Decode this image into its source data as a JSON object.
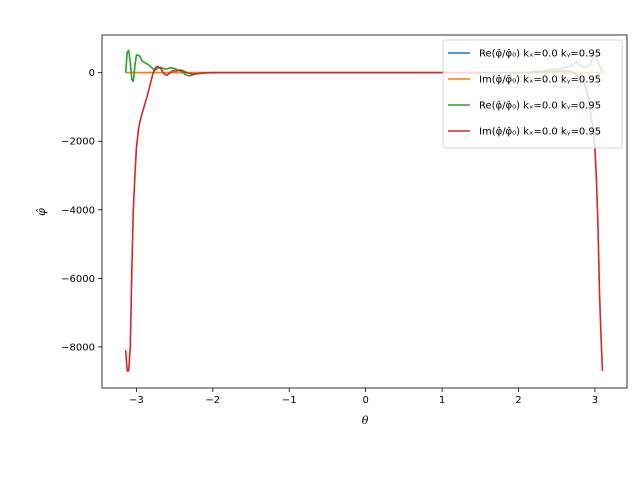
{
  "chart_data": {
    "type": "line",
    "xlabel": "θ",
    "ylabel": "φ̂",
    "xlim": [
      -3.45,
      3.42
    ],
    "ylim": [
      -9200,
      1100
    ],
    "xticks": [
      -3,
      -2,
      -1,
      0,
      1,
      2,
      3
    ],
    "yticks": [
      -8000,
      -6000,
      -4000,
      -2000,
      0
    ],
    "grid": false,
    "legend_position": "top-right",
    "series": [
      {
        "name": "Re(φ̂/φ̂₀) kₓ=0.0 kᵧ=0.95",
        "color": "#1f77b4",
        "x": [
          -3.14,
          3.1
        ],
        "y": [
          0,
          0
        ]
      },
      {
        "name": "Im(φ̂/φ̂₀) kₓ=0.0 kᵧ=0.95",
        "color": "#ff7f0e",
        "x": [
          -3.14,
          3.1
        ],
        "y": [
          0,
          0
        ]
      },
      {
        "name": "Re(φ̂/φ̂₀) kₓ=0.0 kᵧ=0.95",
        "color": "#2ca02c",
        "x": [
          -3.14,
          -3.12,
          -3.1,
          -3.08,
          -3.06,
          -3.04,
          -3.02,
          -3.0,
          -2.96,
          -2.92,
          -2.88,
          -2.84,
          -2.8,
          -2.76,
          -2.72,
          -2.68,
          -2.64,
          -2.6,
          -2.56,
          -2.52,
          -2.48,
          -2.44,
          -2.4,
          -2.36,
          -2.32,
          -2.28,
          -2.24,
          -2.2,
          -2.1,
          -2.0,
          -1.8,
          -1.5,
          -1.0,
          0.0,
          1.0,
          1.5,
          1.8,
          2.0,
          2.1,
          2.2,
          2.3,
          2.4,
          2.5,
          2.6,
          2.7,
          2.76,
          2.82,
          2.88,
          2.94,
          2.98,
          3.02,
          3.06,
          3.1
        ],
        "y": [
          0,
          600,
          650,
          300,
          -200,
          -250,
          200,
          520,
          500,
          330,
          280,
          230,
          150,
          60,
          130,
          160,
          110,
          110,
          140,
          130,
          100,
          60,
          20,
          -50,
          -90,
          -80,
          -40,
          -20,
          0,
          0,
          0,
          0,
          0,
          0,
          0,
          0,
          0,
          0,
          10,
          30,
          50,
          80,
          100,
          140,
          220,
          320,
          200,
          150,
          230,
          500,
          450,
          200,
          0
        ]
      },
      {
        "name": "Im(φ̂/φ̂₀) kₓ=0.0 kᵧ=0.95",
        "color": "#d62728",
        "x": [
          -3.14,
          -3.12,
          -3.1,
          -3.08,
          -3.06,
          -3.04,
          -3.02,
          -3.0,
          -2.97,
          -2.94,
          -2.9,
          -2.86,
          -2.82,
          -2.78,
          -2.75,
          -2.72,
          -2.68,
          -2.64,
          -2.6,
          -2.56,
          -2.52,
          -2.48,
          -2.44,
          -2.4,
          -2.36,
          -2.3,
          -2.24,
          -2.2,
          -2.1,
          -2.0,
          -1.5,
          -1.0,
          0.0,
          1.0,
          1.5,
          2.0,
          2.2,
          2.4,
          2.6,
          2.7,
          2.78,
          2.84,
          2.88,
          2.92,
          2.95,
          2.98,
          3.0,
          3.02,
          3.04,
          3.06,
          3.08,
          3.1
        ],
        "y": [
          -8100,
          -8700,
          -8700,
          -8000,
          -5800,
          -4000,
          -3000,
          -2200,
          -1600,
          -1300,
          -1000,
          -700,
          -350,
          0,
          150,
          180,
          120,
          -30,
          -80,
          0,
          60,
          50,
          80,
          70,
          20,
          -20,
          -40,
          -30,
          -10,
          0,
          0,
          0,
          0,
          0,
          0,
          0,
          10,
          30,
          50,
          30,
          -100,
          -200,
          -400,
          -800,
          -1300,
          -1700,
          -2200,
          -3100,
          -4500,
          -6400,
          -7700,
          -8700
        ]
      }
    ]
  }
}
